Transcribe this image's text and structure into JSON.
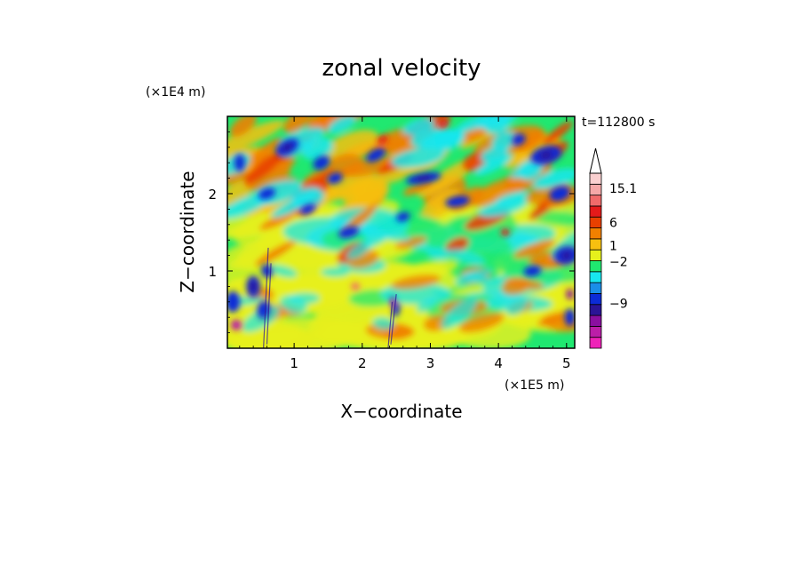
{
  "chart_data": {
    "type": "heatmap",
    "title": "zonal velocity",
    "xlabel": "X−coordinate",
    "ylabel": "Z−coordinate",
    "x_unit": "(×1E5 m)",
    "y_unit": "(×1E4 m)",
    "time_label": "t=112800 s",
    "xlim": [
      0.02,
      5.12
    ],
    "ylim": [
      0,
      3
    ],
    "x_ticks": [
      1,
      2,
      3,
      4,
      5
    ],
    "y_ticks": [
      1,
      2
    ],
    "colorbar": {
      "levels": [
        {
          "color": "#ee22b8"
        },
        {
          "color": "#bb1ea8"
        },
        {
          "color": "#8a0fa0"
        },
        {
          "color": "#2a1496"
        },
        {
          "color": "#0c2bd6"
        },
        {
          "color": "#1a8ee8"
        },
        {
          "color": "#18e6ee"
        },
        {
          "color": "#20e870"
        },
        {
          "color": "#e6f01c"
        },
        {
          "color": "#f7c010"
        },
        {
          "color": "#f08000"
        },
        {
          "color": "#e84000"
        },
        {
          "color": "#e41a1a"
        },
        {
          "color": "#f06a6a"
        },
        {
          "color": "#f5a8a8"
        },
        {
          "color": "#fad0d0"
        }
      ],
      "labels": [
        {
          "text": "15.1",
          "level": 14.6
        },
        {
          "text": "6",
          "level": 11.5
        },
        {
          "text": "1",
          "level": 9.4
        },
        {
          "text": "−2",
          "level": 7.9
        },
        {
          "text": "−9",
          "level": 4.1
        }
      ]
    }
  }
}
